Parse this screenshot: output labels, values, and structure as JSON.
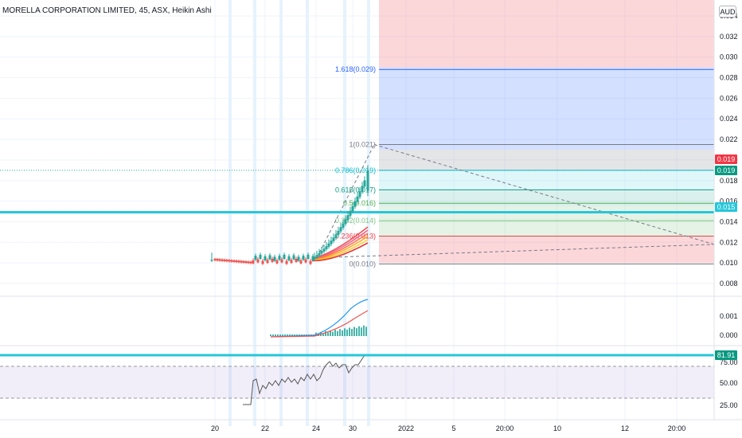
{
  "header": {
    "title": "MORELLA CORPORATION LIMITED, 45, ASX, Heikin Ashi",
    "currency": "AUD"
  },
  "price_axis": {
    "labels": [
      "0.034",
      "0.032",
      "0.030",
      "0.028",
      "0.026",
      "0.024",
      "0.022",
      "0.020",
      "0.018",
      "0.016",
      "0.014",
      "0.012",
      "0.010",
      "0.008"
    ],
    "badges": [
      {
        "value": "0.019",
        "color": "#f23645"
      },
      {
        "value": "0.019",
        "color": "#089981"
      },
      {
        "value": "0.015",
        "color": "#26c6da"
      }
    ]
  },
  "volume_axis": {
    "labels": [
      "0.001",
      "0.000"
    ]
  },
  "rsi_axis": {
    "labels": [
      "75.00",
      "50.00",
      "25.00"
    ],
    "badge": {
      "value": "81.91",
      "color": "#089981"
    }
  },
  "time_axis": {
    "labels": [
      "20",
      "22",
      "24",
      "30",
      "2022",
      "5",
      "20:00",
      "10",
      "12",
      "20:00"
    ]
  },
  "fib_levels": [
    {
      "ratio": "1.618",
      "price": 0.029,
      "label": "1.618(0.029)",
      "color": "#2962ff"
    },
    {
      "ratio": "1",
      "price": 0.021,
      "label": "1(0.021)",
      "color": "#787b86"
    },
    {
      "ratio": "0.786",
      "price": 0.019,
      "label": "0.786(0.019)",
      "color": "#00bcd4"
    },
    {
      "ratio": "0.618",
      "price": 0.017,
      "label": "0.618(0.017)",
      "color": "#089981"
    },
    {
      "ratio": "0.5",
      "price": 0.016,
      "label": "0.5(0.016)",
      "color": "#4caf50"
    },
    {
      "ratio": "0.382",
      "price": 0.014,
      "label": "0.382(0.014)",
      "color": "#81c784"
    },
    {
      "ratio": "0.236",
      "price": 0.013,
      "label": "0.236(0.013)",
      "color": "#f23645"
    },
    {
      "ratio": "0",
      "price": 0.01,
      "label": "0(0.010)",
      "color": "#787b86"
    }
  ],
  "horizontal_line": {
    "price": 0.015,
    "color": "#26c6da"
  },
  "last_price": 0.019,
  "rsi": {
    "value": 81.91,
    "upper": 70,
    "lower": 30
  },
  "colors": {
    "up": "#26a69a",
    "down": "#ef5350",
    "session": "#e3f2fd"
  }
}
